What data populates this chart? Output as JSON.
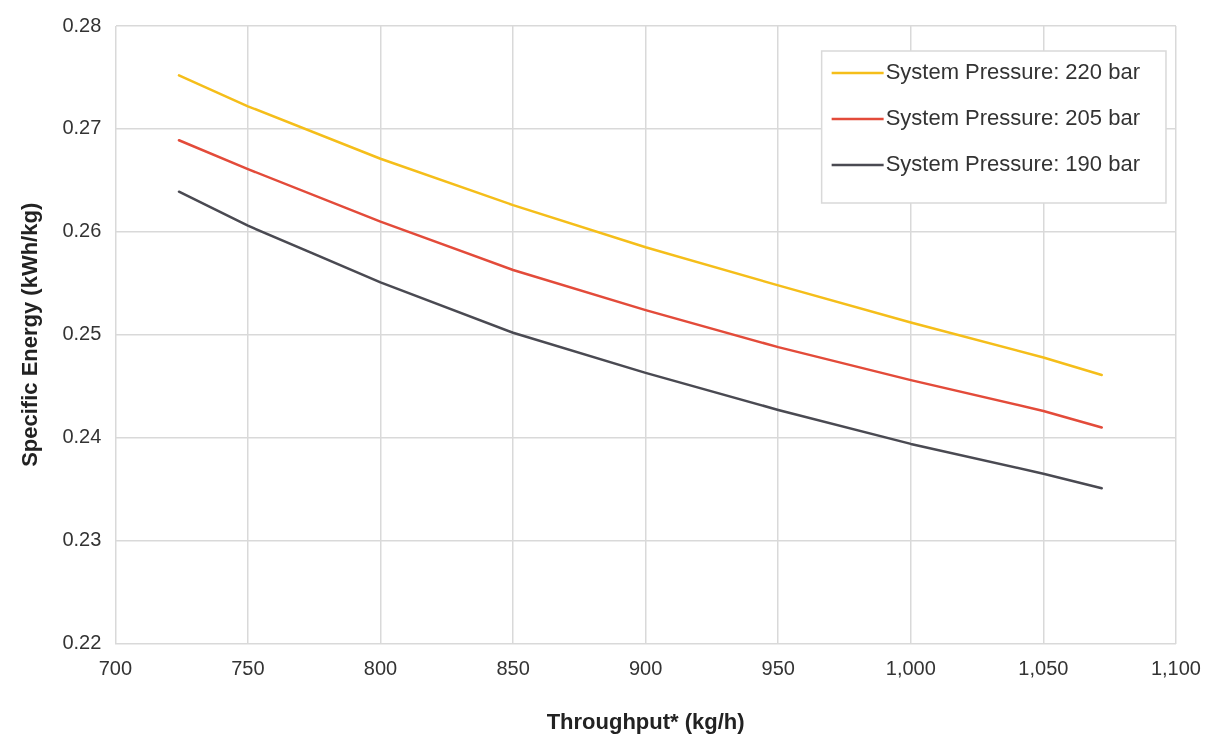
{
  "chart_data": {
    "type": "line",
    "xlabel": "Throughput* (kg/h)",
    "ylabel": "Specific Energy (kWh/kg)",
    "xlim": [
      700,
      1100
    ],
    "xticks": [
      700,
      750,
      800,
      850,
      900,
      950,
      {
        "value": 1000,
        "label": "1,000"
      },
      {
        "value": 1050,
        "label": "1,050"
      },
      {
        "value": 1100,
        "label": "1,100"
      }
    ],
    "ylim": [
      0.22,
      0.28
    ],
    "yticks": [
      0.22,
      0.23,
      0.24,
      0.25,
      0.26,
      0.27,
      0.28
    ],
    "x": [
      724,
      750,
      800,
      850,
      900,
      950,
      1000,
      1050,
      1072
    ],
    "series": [
      {
        "name": "System Pressure: 220 bar",
        "color": "#f5be1a",
        "values": [
          0.2752,
          0.2722,
          0.2671,
          0.2626,
          0.2585,
          0.2548,
          0.2512,
          0.2478,
          0.2461
        ]
      },
      {
        "name": "System Pressure: 205 bar",
        "color": "#e34b3a",
        "values": [
          0.2689,
          0.2661,
          0.261,
          0.2563,
          0.2524,
          0.2488,
          0.2456,
          0.2426,
          0.241
        ]
      },
      {
        "name": "System Pressure: 190 bar",
        "color": "#4a4a52",
        "values": [
          0.2639,
          0.2606,
          0.2551,
          0.2502,
          0.2463,
          0.2427,
          0.2394,
          0.2365,
          0.2351
        ]
      }
    ],
    "grid": true,
    "legend": "top right",
    "marker": "none",
    "line_style": "solid"
  }
}
